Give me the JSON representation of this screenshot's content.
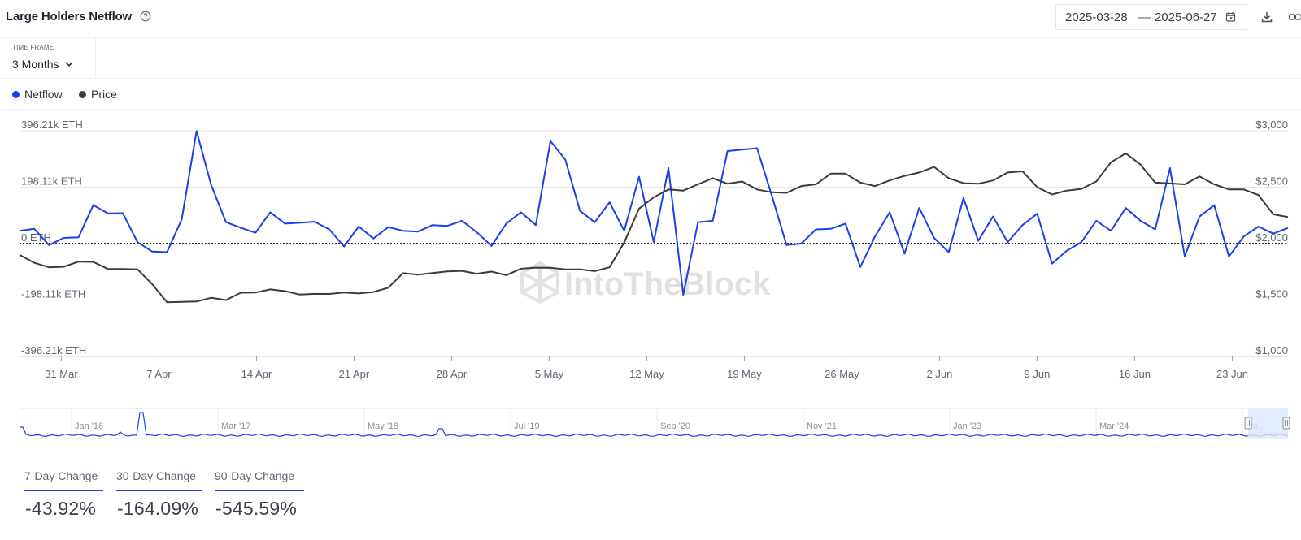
{
  "header": {
    "title": "Large Holders Netflow",
    "date_from": "2025-03-28",
    "date_sep": "—",
    "date_to": "2025-06-27"
  },
  "timeframe": {
    "label": "TIME FRAME",
    "value": "3 Months"
  },
  "legend": [
    {
      "label": "Netflow",
      "color": "#1d3fe8"
    },
    {
      "label": "Price",
      "color": "#3b3b3b"
    }
  ],
  "watermark": "IntoTheBlock",
  "colors": {
    "netflow": "#1d3fe8",
    "price": "#3b3b3b",
    "grid": "#e4e6ea",
    "nav_window": "#dbe7fb"
  },
  "chart_data": {
    "type": "line",
    "x_start": "2025-03-28",
    "x_end": "2025-06-27",
    "left_axis": {
      "ticks": [
        "396.21k ETH",
        "198.11k ETH",
        "0 ETH",
        "-198.11k ETH",
        "-396.21k ETH"
      ],
      "range_k": [
        -396.21,
        396.21
      ]
    },
    "right_axis": {
      "ticks": [
        "$3,000",
        "$2,500",
        "$2,000",
        "$1,500",
        "$1,000"
      ],
      "range": [
        1000,
        3000
      ]
    },
    "x_ticks": [
      "31 Mar",
      "7 Apr",
      "14 Apr",
      "21 Apr",
      "28 Apr",
      "5 May",
      "12 May",
      "19 May",
      "26 May",
      "2 Jun",
      "9 Jun",
      "16 Jun",
      "23 Jun"
    ],
    "zero_line": "dotted",
    "series": [
      {
        "name": "Netflow",
        "axis": "left",
        "unit": "k ETH",
        "values": [
          45,
          52,
          -5,
          20,
          22,
          135,
          106,
          107,
          5,
          -28,
          -30,
          85,
          395,
          205,
          75,
          56,
          38,
          110,
          70,
          73,
          77,
          50,
          -10,
          60,
          18,
          58,
          45,
          42,
          65,
          62,
          80,
          40,
          -8,
          70,
          110,
          65,
          360,
          295,
          115,
          75,
          145,
          45,
          235,
          5,
          265,
          -180,
          75,
          80,
          325,
          330,
          335,
          170,
          -5,
          0,
          50,
          52,
          70,
          -82,
          25,
          110,
          -35,
          125,
          20,
          -30,
          160,
          10,
          95,
          5,
          65,
          105,
          -70,
          -25,
          5,
          80,
          45,
          125,
          80,
          50,
          265,
          -45,
          95,
          135,
          -45,
          25,
          60,
          35,
          55
        ]
      },
      {
        "name": "Price",
        "axis": "right",
        "unit": "USD",
        "values": [
          1900,
          1830,
          1790,
          1795,
          1840,
          1838,
          1775,
          1775,
          1772,
          1640,
          1480,
          1484,
          1487,
          1520,
          1500,
          1565,
          1566,
          1594,
          1579,
          1548,
          1555,
          1554,
          1566,
          1558,
          1571,
          1609,
          1738,
          1725,
          1739,
          1754,
          1758,
          1733,
          1752,
          1720,
          1778,
          1787,
          1786,
          1772,
          1771,
          1756,
          1790,
          2010,
          2310,
          2410,
          2480,
          2470,
          2525,
          2580,
          2530,
          2550,
          2480,
          2455,
          2450,
          2510,
          2525,
          2620,
          2620,
          2540,
          2510,
          2560,
          2600,
          2630,
          2680,
          2580,
          2535,
          2530,
          2560,
          2630,
          2640,
          2500,
          2435,
          2470,
          2485,
          2550,
          2720,
          2800,
          2700,
          2540,
          2533,
          2525,
          2595,
          2525,
          2480,
          2480,
          2430,
          2260,
          2235
        ]
      }
    ],
    "navigator": {
      "ticks": [
        "Jan '16",
        "Mar '17",
        "May '18",
        "Jul '19",
        "Sep '20",
        "Nov '21",
        "Jan '23",
        "Mar '24",
        "Ma..."
      ]
    }
  },
  "changes": [
    {
      "label": "7-Day Change",
      "value": "-43.92%"
    },
    {
      "label": "30-Day Change",
      "value": "-164.09%"
    },
    {
      "label": "90-Day Change",
      "value": "-545.59%"
    }
  ]
}
